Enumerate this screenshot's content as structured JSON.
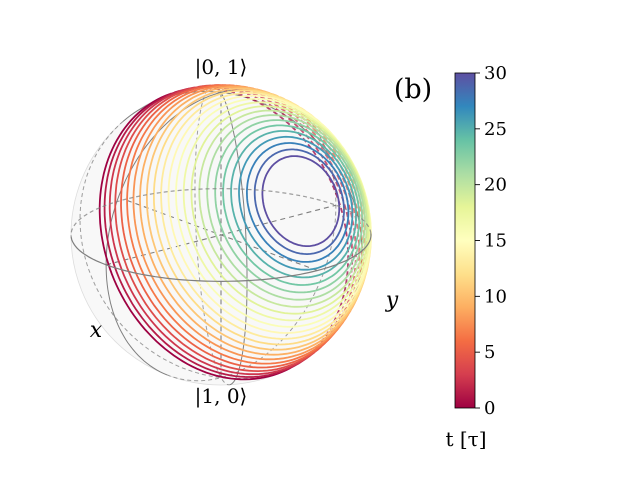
{
  "panel_label": "(b)",
  "colors": {
    "sphere_fill": "#ececec",
    "grid": "#7f7f7f",
    "colormap": [
      "#9e0142",
      "#d53e4f",
      "#f46d43",
      "#fdae61",
      "#fee08b",
      "#ffffbf",
      "#e6f598",
      "#abdda4",
      "#66c2a5",
      "#3288bd",
      "#5e4fa2"
    ]
  },
  "chart_data": {
    "type": "bloch-sphere-trajectory",
    "title": "",
    "axes_labels": {
      "top": "|0, 1⟩",
      "bottom": "|1, 0⟩",
      "x": "x",
      "y": "y"
    },
    "colorbar": {
      "label": "t [τ]",
      "range": [
        0,
        30
      ],
      "ticks": [
        0,
        5,
        10,
        15,
        20,
        25,
        30
      ],
      "colormap": "Spectral"
    },
    "trajectory": {
      "description_t_range": [
        0,
        30
      ],
      "loops": 24,
      "start_cone_half_angle_deg": 88,
      "end_cone_half_angle_deg": 18
    }
  }
}
